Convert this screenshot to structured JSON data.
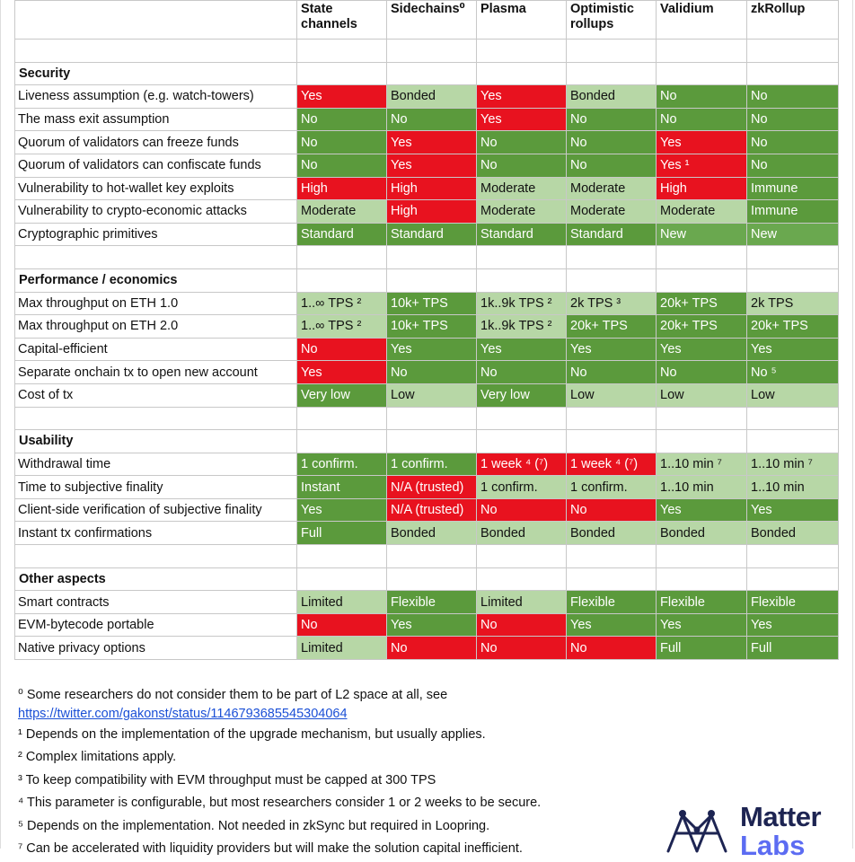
{
  "table": {
    "columns": [
      "State channels",
      "Sidechains⁰",
      "Plasma",
      "Optimistic rollups",
      "Validium",
      "zkRollup"
    ],
    "sections": [
      {
        "title": "Security",
        "rows": [
          {
            "label": "Liveness assumption (e.g. watch-towers)",
            "cells": [
              {
                "text": "Yes",
                "color": "#e8121f"
              },
              {
                "text": "Bonded",
                "color": "#b7d7a6"
              },
              {
                "text": "Yes",
                "color": "#e8121f"
              },
              {
                "text": "Bonded",
                "color": "#b7d7a6"
              },
              {
                "text": "No",
                "color": "#5b9a3c"
              },
              {
                "text": "No",
                "color": "#5b9a3c"
              }
            ]
          },
          {
            "label": "The mass exit assumption",
            "cells": [
              {
                "text": "No",
                "color": "#5b9a3c"
              },
              {
                "text": "No",
                "color": "#5b9a3c"
              },
              {
                "text": "Yes",
                "color": "#e8121f"
              },
              {
                "text": "No",
                "color": "#5b9a3c"
              },
              {
                "text": "No",
                "color": "#5b9a3c"
              },
              {
                "text": "No",
                "color": "#5b9a3c"
              }
            ]
          },
          {
            "label": "Quorum of validators can freeze funds",
            "cells": [
              {
                "text": "No",
                "color": "#5b9a3c"
              },
              {
                "text": "Yes",
                "color": "#e8121f"
              },
              {
                "text": "No",
                "color": "#5b9a3c"
              },
              {
                "text": "No",
                "color": "#5b9a3c"
              },
              {
                "text": "Yes",
                "color": "#e8121f"
              },
              {
                "text": "No",
                "color": "#5b9a3c"
              }
            ]
          },
          {
            "label": "Quorum of validators can confiscate funds",
            "cells": [
              {
                "text": "No",
                "color": "#5b9a3c"
              },
              {
                "text": "Yes",
                "color": "#e8121f"
              },
              {
                "text": "No",
                "color": "#5b9a3c"
              },
              {
                "text": "No",
                "color": "#5b9a3c"
              },
              {
                "text": "Yes ¹",
                "color": "#e8121f"
              },
              {
                "text": "No",
                "color": "#5b9a3c"
              }
            ]
          },
          {
            "label": "Vulnerability to hot-wallet key exploits",
            "cells": [
              {
                "text": "High",
                "color": "#e8121f"
              },
              {
                "text": "High",
                "color": "#e8121f"
              },
              {
                "text": "Moderate",
                "color": "#b7d7a6"
              },
              {
                "text": "Moderate",
                "color": "#b7d7a6"
              },
              {
                "text": "High",
                "color": "#e8121f"
              },
              {
                "text": "Immune",
                "color": "#5b9a3c"
              }
            ]
          },
          {
            "label": "Vulnerability to crypto-economic attacks",
            "cells": [
              {
                "text": "Moderate",
                "color": "#b7d7a6"
              },
              {
                "text": "High",
                "color": "#e8121f"
              },
              {
                "text": "Moderate",
                "color": "#b7d7a6"
              },
              {
                "text": "Moderate",
                "color": "#b7d7a6"
              },
              {
                "text": "Moderate",
                "color": "#b7d7a6"
              },
              {
                "text": "Immune",
                "color": "#5b9a3c"
              }
            ]
          },
          {
            "label": "Cryptographic primitives",
            "cells": [
              {
                "text": "Standard",
                "color": "#5b9a3c"
              },
              {
                "text": "Standard",
                "color": "#5b9a3c"
              },
              {
                "text": "Standard",
                "color": "#5b9a3c"
              },
              {
                "text": "Standard",
                "color": "#5b9a3c"
              },
              {
                "text": "New",
                "color": "#6aa84f"
              },
              {
                "text": "New",
                "color": "#6aa84f"
              }
            ]
          }
        ]
      },
      {
        "title": "Performance / economics",
        "rows": [
          {
            "label": "Max throughput on ETH 1.0",
            "cells": [
              {
                "text": "1..∞ TPS ²",
                "color": "#b7d7a6"
              },
              {
                "text": "10k+ TPS",
                "color": "#5b9a3c"
              },
              {
                "text": "1k..9k TPS ²",
                "color": "#b7d7a6"
              },
              {
                "text": "2k TPS ³",
                "color": "#b7d7a6"
              },
              {
                "text": "20k+ TPS",
                "color": "#5b9a3c"
              },
              {
                "text": "2k TPS",
                "color": "#b7d7a6"
              }
            ]
          },
          {
            "label": "Max throughput on ETH 2.0",
            "cells": [
              {
                "text": "1..∞ TPS ²",
                "color": "#b7d7a6"
              },
              {
                "text": "10k+ TPS",
                "color": "#5b9a3c"
              },
              {
                "text": "1k..9k TPS ²",
                "color": "#b7d7a6"
              },
              {
                "text": "20k+ TPS",
                "color": "#5b9a3c"
              },
              {
                "text": "20k+ TPS",
                "color": "#5b9a3c"
              },
              {
                "text": "20k+ TPS",
                "color": "#5b9a3c"
              }
            ]
          },
          {
            "label": "Capital-efficient",
            "cells": [
              {
                "text": "No",
                "color": "#e8121f"
              },
              {
                "text": "Yes",
                "color": "#5b9a3c"
              },
              {
                "text": "Yes",
                "color": "#5b9a3c"
              },
              {
                "text": "Yes",
                "color": "#5b9a3c"
              },
              {
                "text": "Yes",
                "color": "#5b9a3c"
              },
              {
                "text": "Yes",
                "color": "#5b9a3c"
              }
            ]
          },
          {
            "label": "Separate onchain tx to open new account",
            "cells": [
              {
                "text": "Yes",
                "color": "#e8121f"
              },
              {
                "text": "No",
                "color": "#5b9a3c"
              },
              {
                "text": "No",
                "color": "#5b9a3c"
              },
              {
                "text": "No",
                "color": "#5b9a3c"
              },
              {
                "text": "No",
                "color": "#5b9a3c"
              },
              {
                "text": "No ⁵",
                "color": "#5b9a3c"
              }
            ]
          },
          {
            "label": "Cost of tx",
            "cells": [
              {
                "text": "Very low",
                "color": "#5b9a3c"
              },
              {
                "text": "Low",
                "color": "#b7d7a6"
              },
              {
                "text": "Very low",
                "color": "#5b9a3c"
              },
              {
                "text": "Low",
                "color": "#b7d7a6"
              },
              {
                "text": "Low",
                "color": "#b7d7a6"
              },
              {
                "text": "Low",
                "color": "#b7d7a6"
              }
            ]
          }
        ]
      },
      {
        "title": "Usability",
        "rows": [
          {
            "label": "Withdrawal time",
            "cells": [
              {
                "text": "1 confirm.",
                "color": "#5b9a3c"
              },
              {
                "text": "1 confirm.",
                "color": "#5b9a3c"
              },
              {
                "text": "1 week ⁴ (⁷)",
                "color": "#e8121f"
              },
              {
                "text": "1 week ⁴ (⁷)",
                "color": "#e8121f"
              },
              {
                "text": "1..10 min ⁷",
                "color": "#b7d7a6"
              },
              {
                "text": "1..10 min ⁷",
                "color": "#b7d7a6"
              }
            ]
          },
          {
            "label": "Time to subjective finality",
            "cells": [
              {
                "text": "Instant",
                "color": "#5b9a3c"
              },
              {
                "text": "N/A (trusted)",
                "color": "#e8121f"
              },
              {
                "text": "1 confirm.",
                "color": "#b7d7a6"
              },
              {
                "text": "1 confirm.",
                "color": "#b7d7a6"
              },
              {
                "text": "1..10 min",
                "color": "#b7d7a6"
              },
              {
                "text": "1..10 min",
                "color": "#b7d7a6"
              }
            ]
          },
          {
            "label": "Client-side verification of subjective finality",
            "cells": [
              {
                "text": "Yes",
                "color": "#5b9a3c"
              },
              {
                "text": "N/A (trusted)",
                "color": "#e8121f"
              },
              {
                "text": "No",
                "color": "#e8121f"
              },
              {
                "text": "No",
                "color": "#e8121f"
              },
              {
                "text": "Yes",
                "color": "#5b9a3c"
              },
              {
                "text": "Yes",
                "color": "#5b9a3c"
              }
            ]
          },
          {
            "label": "Instant tx confirmations",
            "cells": [
              {
                "text": "Full",
                "color": "#5b9a3c"
              },
              {
                "text": "Bonded",
                "color": "#b7d7a6"
              },
              {
                "text": "Bonded",
                "color": "#b7d7a6"
              },
              {
                "text": "Bonded",
                "color": "#b7d7a6"
              },
              {
                "text": "Bonded",
                "color": "#b7d7a6"
              },
              {
                "text": "Bonded",
                "color": "#b7d7a6"
              }
            ]
          }
        ]
      },
      {
        "title": "Other aspects",
        "rows": [
          {
            "label": "Smart contracts",
            "cells": [
              {
                "text": "Limited",
                "color": "#b7d7a6"
              },
              {
                "text": "Flexible",
                "color": "#5b9a3c"
              },
              {
                "text": "Limited",
                "color": "#b7d7a6"
              },
              {
                "text": "Flexible",
                "color": "#5b9a3c"
              },
              {
                "text": "Flexible",
                "color": "#5b9a3c"
              },
              {
                "text": "Flexible",
                "color": "#5b9a3c"
              }
            ]
          },
          {
            "label": "EVM-bytecode portable",
            "cells": [
              {
                "text": "No",
                "color": "#e8121f"
              },
              {
                "text": "Yes",
                "color": "#5b9a3c"
              },
              {
                "text": "No",
                "color": "#e8121f"
              },
              {
                "text": "Yes",
                "color": "#5b9a3c"
              },
              {
                "text": "Yes",
                "color": "#5b9a3c"
              },
              {
                "text": "Yes",
                "color": "#5b9a3c"
              }
            ]
          },
          {
            "label": "Native privacy options",
            "cells": [
              {
                "text": "Limited",
                "color": "#b7d7a6"
              },
              {
                "text": "No",
                "color": "#e8121f"
              },
              {
                "text": "No",
                "color": "#e8121f"
              },
              {
                "text": "No",
                "color": "#e8121f"
              },
              {
                "text": "Full",
                "color": "#5b9a3c"
              },
              {
                "text": "Full",
                "color": "#5b9a3c"
              }
            ]
          }
        ]
      }
    ]
  },
  "footnotes": {
    "first": "⁰ Some researchers do not consider them to be part of L2 space at all, see",
    "link": "https://twitter.com/gakonst/status/1146793685545304064",
    "items": [
      "¹ Depends on the implementation of the upgrade mechanism, but usually applies.",
      "² Complex limitations apply.",
      "³ To keep compatibility with EVM throughput must be capped at 300 TPS",
      "⁴ This parameter is configurable, but most researchers consider 1 or 2 weeks to be secure.",
      "⁵ Depends on the implementation. Not needed in zkSync but required in Loopring.",
      "⁷ Can be accelerated with liquidity providers but will make the solution capital inefficient."
    ]
  },
  "logo": {
    "line1": "Matter",
    "line2": "Labs"
  }
}
